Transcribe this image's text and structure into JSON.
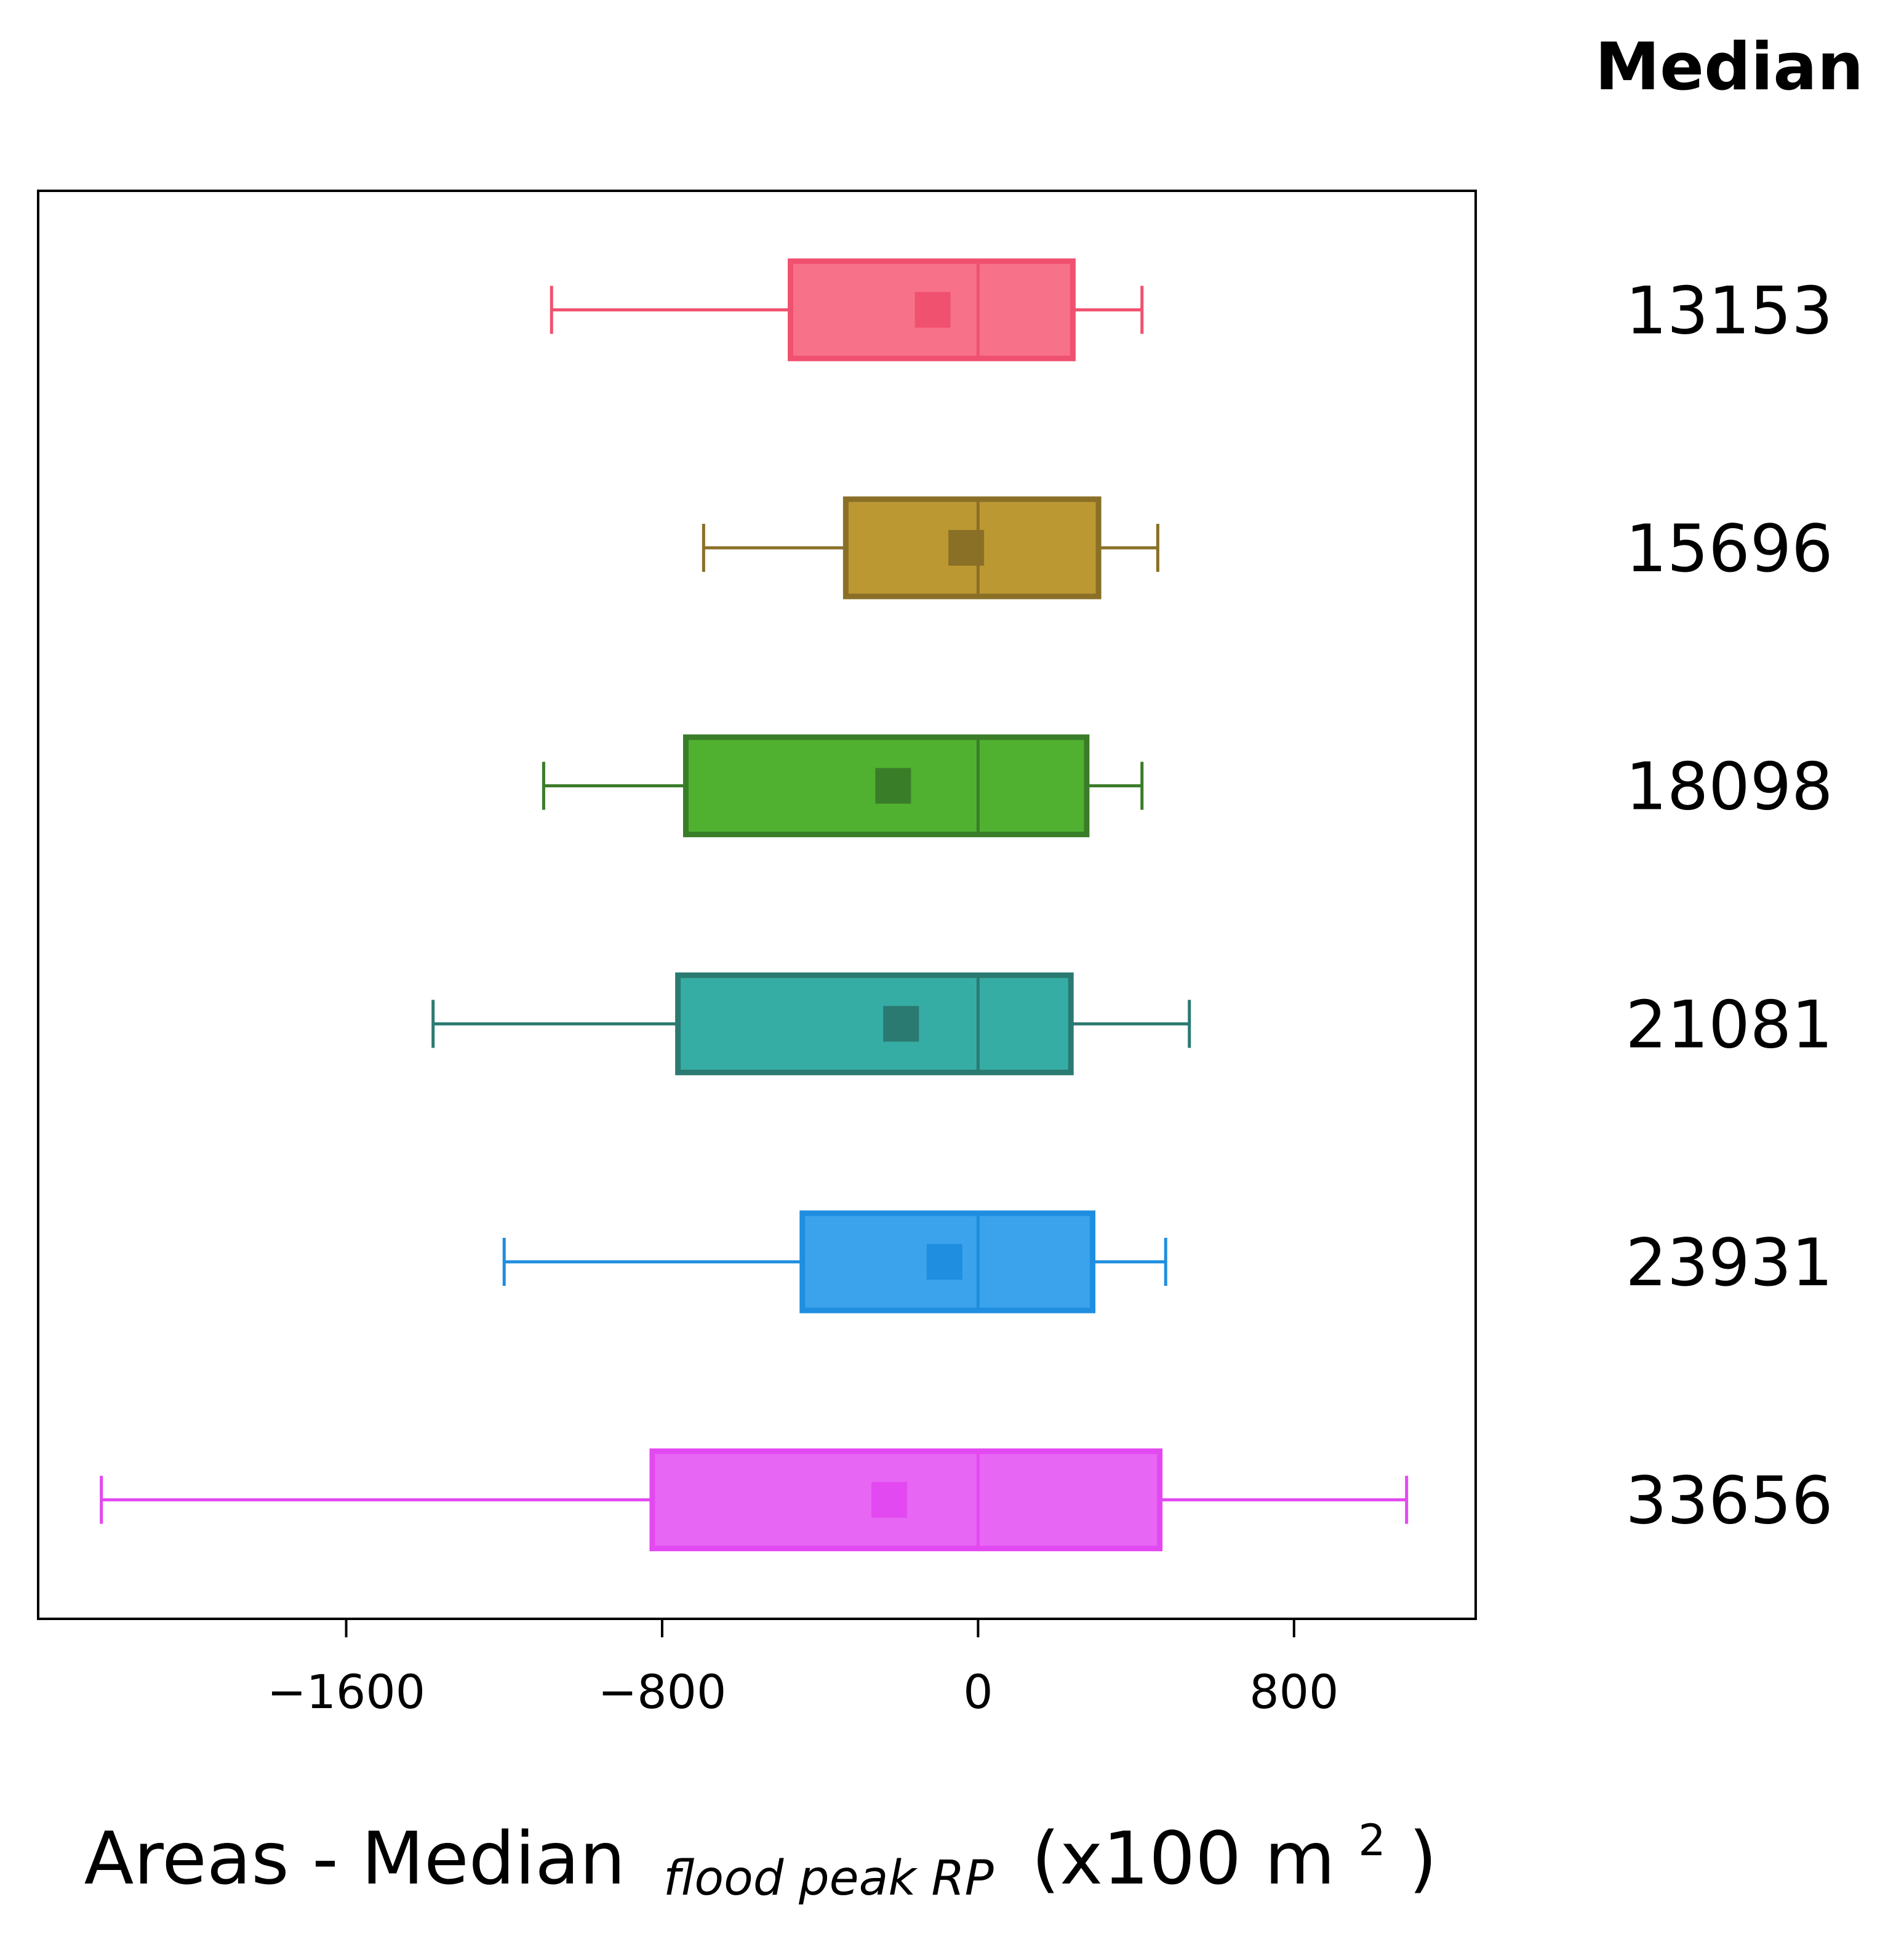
{
  "chart_data": {
    "type": "boxplot",
    "orientation": "horizontal",
    "xlabel": {
      "main": "Areas - Median",
      "subscript": "flood peak RP",
      "unit_prefix": "(x100 m",
      "unit_sup": "2",
      "unit_suffix": ")"
    },
    "xlim": [
      -2380,
      1260
    ],
    "xticks": [
      -1600,
      -800,
      0,
      800
    ],
    "xtick_labels": [
      "−1600",
      "−800",
      "0",
      "800"
    ],
    "grid": false,
    "right_column_header": "Median",
    "series": [
      {
        "median_label": "13153",
        "whisker_low": -1080,
        "q1": -475,
        "median": 0,
        "q3": 240,
        "whisker_high": 415,
        "mean": -115,
        "fill": "#f77189",
        "edge": "#f0516f"
      },
      {
        "median_label": "15696",
        "whisker_low": -695,
        "q1": -335,
        "median": 0,
        "q3": 305,
        "whisker_high": 455,
        "mean": -30,
        "fill": "#bb9832",
        "edge": "#8a6f27"
      },
      {
        "median_label": "18098",
        "whisker_low": -1100,
        "q1": -740,
        "median": 0,
        "q3": 275,
        "whisker_high": 415,
        "mean": -215,
        "fill": "#50b131",
        "edge": "#3a7d28"
      },
      {
        "median_label": "21081",
        "whisker_low": -1380,
        "q1": -760,
        "median": 0,
        "q3": 235,
        "whisker_high": 535,
        "mean": -195,
        "fill": "#36ada4",
        "edge": "#2a7a72"
      },
      {
        "median_label": "23931",
        "whisker_low": -1200,
        "q1": -445,
        "median": 0,
        "q3": 290,
        "whisker_high": 475,
        "mean": -85,
        "fill": "#3ba3ec",
        "edge": "#1f8ee0"
      },
      {
        "median_label": "33656",
        "whisker_low": -2220,
        "q1": -825,
        "median": 0,
        "q3": 460,
        "whisker_high": 1085,
        "mean": -225,
        "fill": "#e866f4",
        "edge": "#e349f0"
      }
    ]
  }
}
